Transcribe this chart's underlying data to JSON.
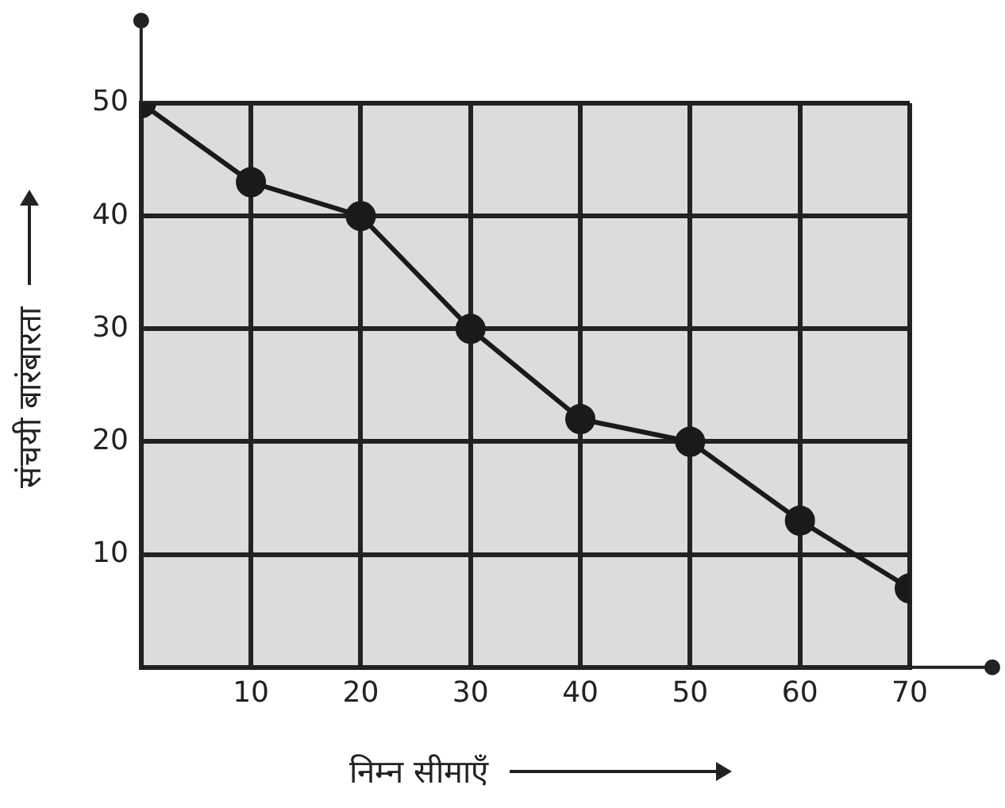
{
  "chart_data": {
    "type": "line",
    "xlabel": "निम्न सीमाएँ",
    "ylabel": "संचयी बारंबारता",
    "x": [
      0,
      10,
      20,
      30,
      40,
      50,
      60,
      70
    ],
    "series": [
      {
        "color": "#1a1a1a",
        "values": [
          50,
          43,
          40,
          30,
          22,
          20,
          13,
          7
        ]
      }
    ],
    "xlim": [
      0,
      70
    ],
    "ylim": [
      0,
      50
    ],
    "xticks": [
      {
        "value": 0,
        "label": null
      },
      10,
      20,
      30,
      40,
      50,
      60,
      70
    ],
    "yticks": [
      {
        "value": 0,
        "label": null
      },
      10,
      20,
      30,
      40,
      50
    ],
    "grid": true,
    "legend": false,
    "marker": "circle",
    "line_style": "solid"
  }
}
